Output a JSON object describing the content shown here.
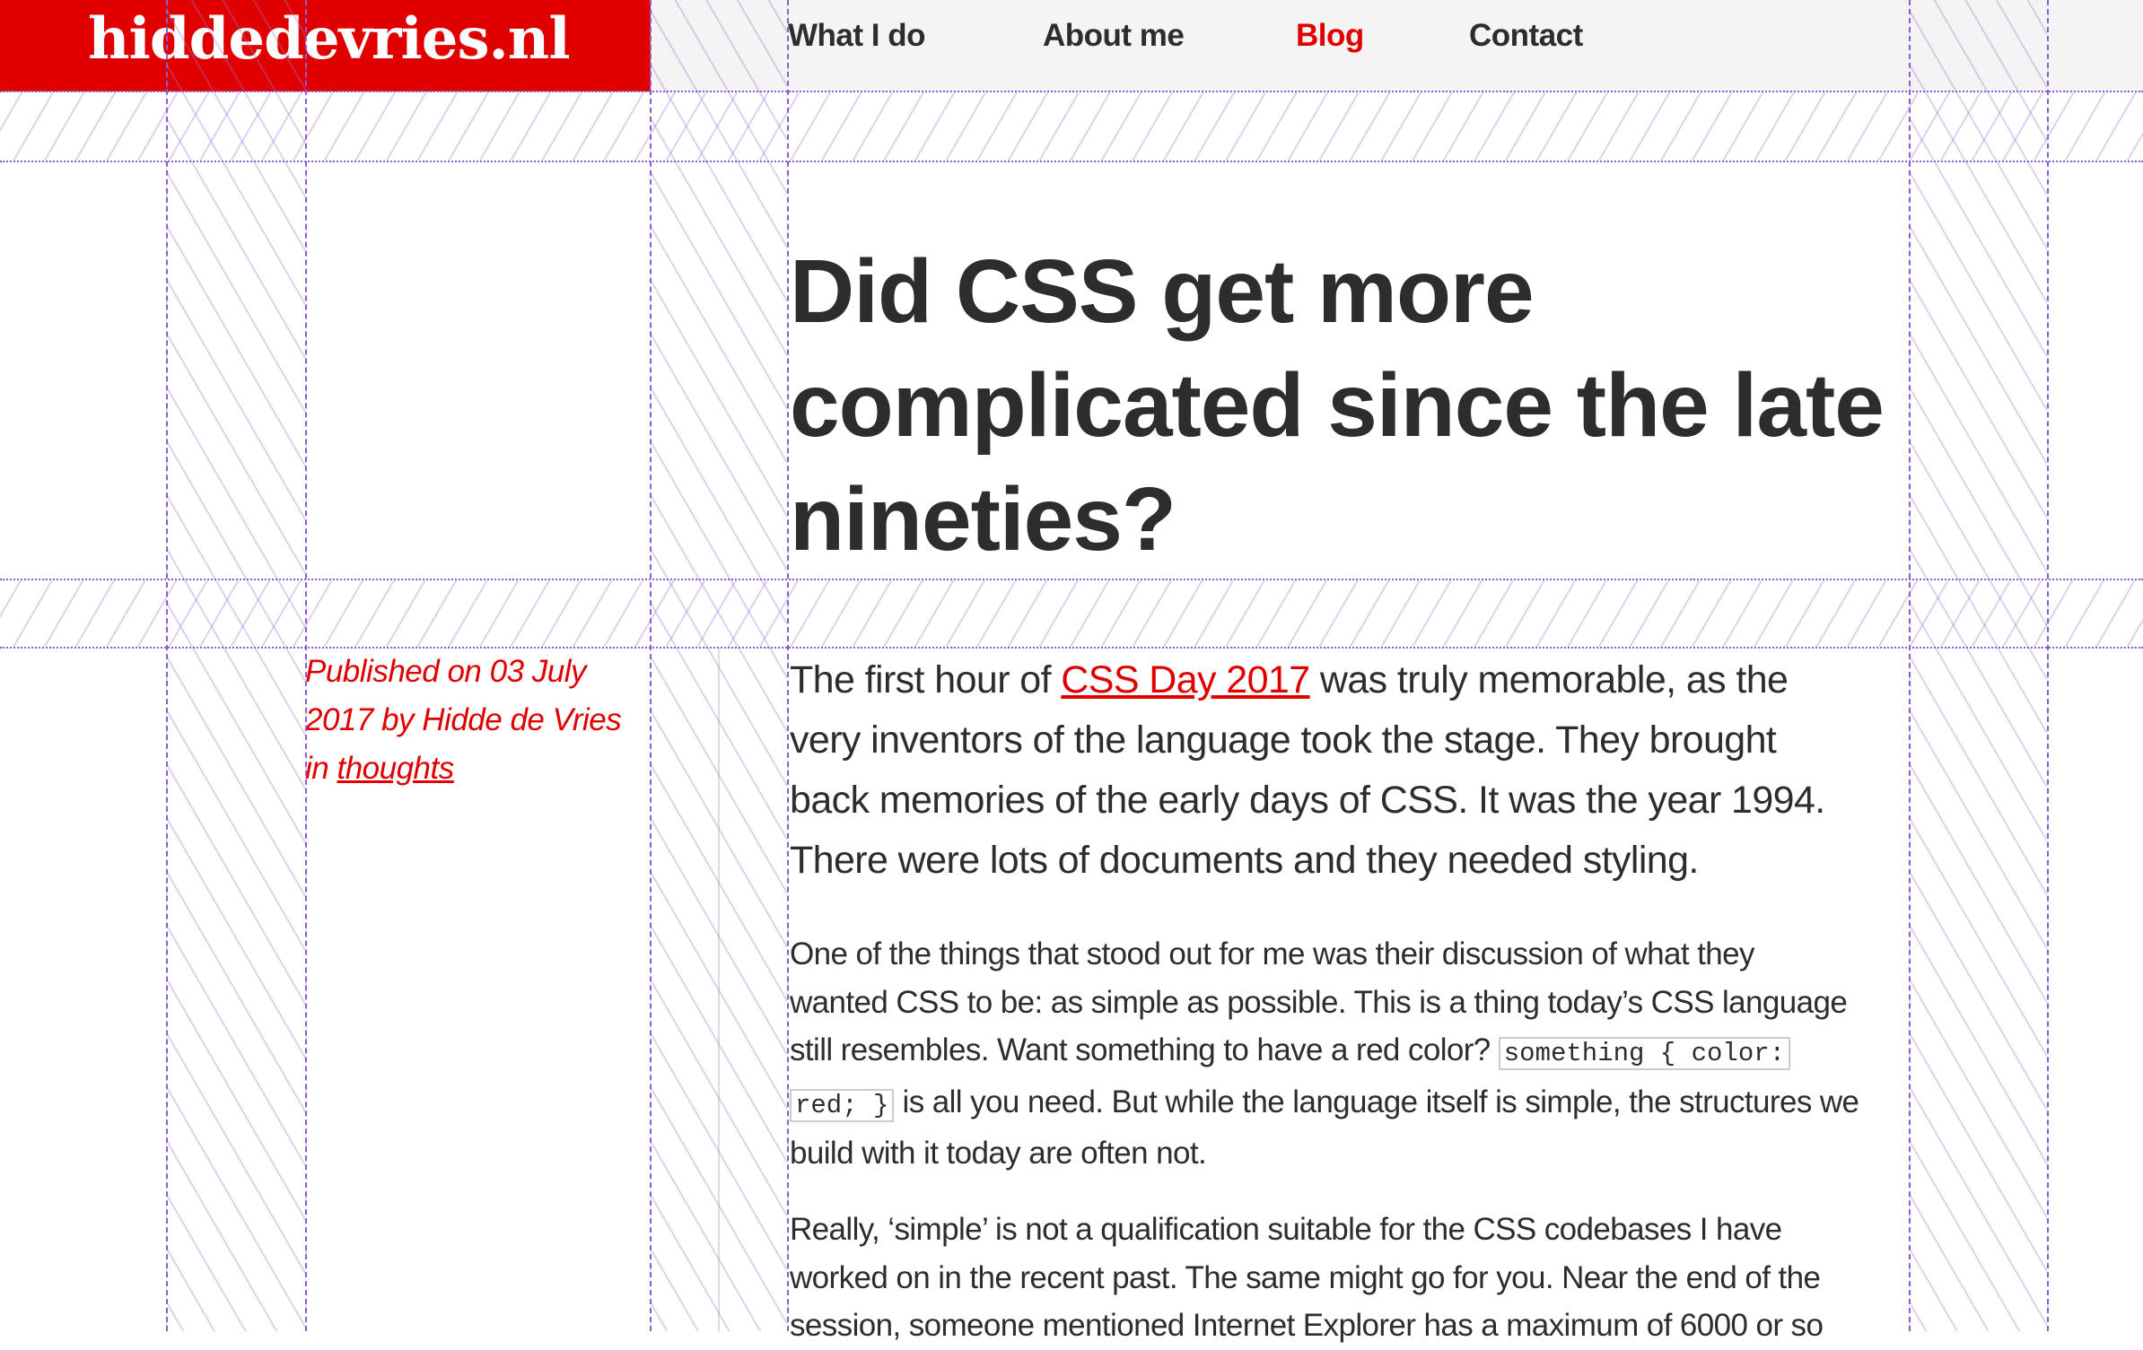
{
  "header": {
    "logo": "hiddedevries.nl",
    "brand_color": "#e00000",
    "nav": [
      {
        "label": "What I do",
        "active": false
      },
      {
        "label": "About me",
        "active": false
      },
      {
        "label": "Blog",
        "active": true
      },
      {
        "label": "Contact",
        "active": false
      }
    ]
  },
  "article": {
    "title_lines": [
      "Did CSS get more",
      "complicated since the late",
      "nineties?"
    ],
    "meta": {
      "line1": "Published on 03 July",
      "line2": "2017 by Hidde de Vries",
      "line3_prefix": "in ",
      "category": "thoughts"
    },
    "intro": {
      "l1_before": "The first hour of ",
      "l1_link": "CSS Day 2017",
      "l1_after": " was truly memorable, as the",
      "l2": "very inventors of the language took the stage. They brought",
      "l3": "back memories of the early days of CSS. It was the year 1994.",
      "l4": "There were lots of documents and they needed styling."
    },
    "p2": {
      "l1": "One of the things that stood out for me was their discussion of what they",
      "l2": "wanted CSS to be: as simple as possible. This is a thing today’s CSS language",
      "l3": "still resembles. Want something to have a red color? ",
      "l3_code": "something { color:",
      "l4_code": "red; }",
      "l4": " is all you need. But while the language itself is simple, the structures we",
      "l5": "build with it today are often not."
    },
    "p3": {
      "l1": "Really, ‘simple’ is not a qualification suitable for the CSS codebases I have",
      "l2": "worked on in the recent past. The same might go for you. Near the end of the",
      "l3": "session, someone mentioned Internet Explorer has a maximum of 6000 or so"
    }
  }
}
